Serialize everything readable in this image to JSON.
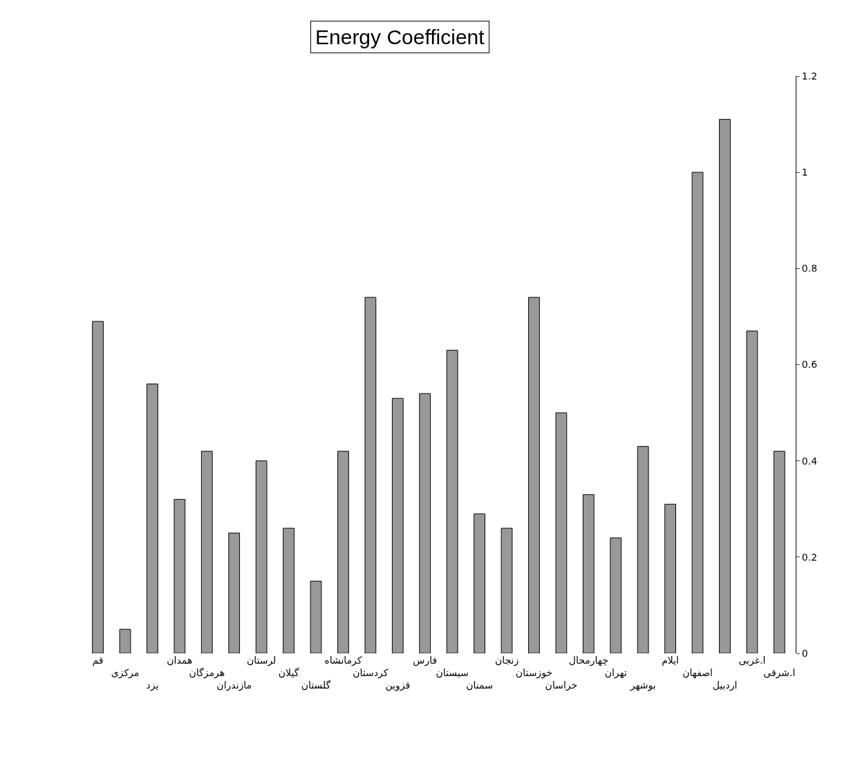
{
  "chart_data": {
    "type": "bar",
    "title": "Energy Coefficient",
    "categories": [
      "قم",
      "مرکزی",
      "یزد",
      "همدان",
      "هرمزگان",
      "مازندران",
      "لرستان",
      "گیلان",
      "گلستان",
      "کرمانشاه",
      "کردستان",
      "قزوین",
      "فارس",
      "سیستان",
      "سمنان",
      "زنجان",
      "خوزستان",
      "خراسان",
      "چهارمحال",
      "تهران",
      "بوشهر",
      "ایلام",
      "اصفهان",
      "اردبیل",
      "ا.غربی",
      "ا.شرقی"
    ],
    "values": [
      0.69,
      0.05,
      0.56,
      0.32,
      0.42,
      0.25,
      0.4,
      0.26,
      0.15,
      0.42,
      0.74,
      0.53,
      0.54,
      0.63,
      0.29,
      0.26,
      0.74,
      0.5,
      0.33,
      0.24,
      0.43,
      0.31,
      1.0,
      1.11,
      0.67,
      0.42
    ],
    "color": "#999999",
    "ylim": [
      0,
      1.2
    ],
    "yticks": [
      0,
      0.2,
      0.4,
      0.6,
      0.8,
      1,
      1.2
    ]
  }
}
